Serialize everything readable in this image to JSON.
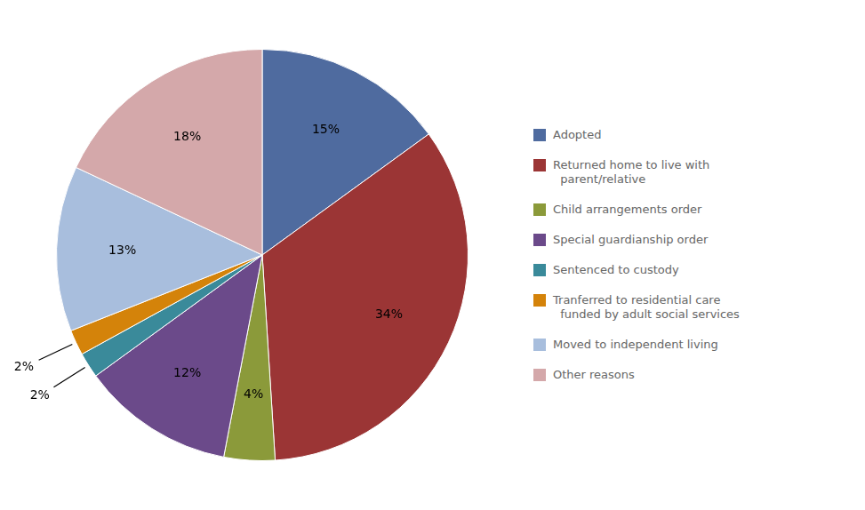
{
  "chart_data": {
    "type": "pie",
    "categories": [
      "Adopted",
      "Returned home to live with\n  parent/relative",
      "Child arrangements order",
      "Special guardianship order",
      "Sentenced to custody",
      "Tranferred to residential care\n  funded by adult social services",
      "Moved to independent living",
      "Other reasons"
    ],
    "values": [
      15,
      34,
      4,
      12,
      2,
      2,
      13,
      18
    ],
    "value_labels": [
      "15%",
      "34%",
      "4%",
      "12%",
      "2%",
      "2%",
      "13%",
      "18%"
    ],
    "colors": [
      "#4F6B9F",
      "#9B3535",
      "#8B9A3A",
      "#6B4A8A",
      "#3A8A9A",
      "#D4830A",
      "#A8BEDD",
      "#D4A8AA"
    ],
    "data_labels": true,
    "legend": "right"
  }
}
